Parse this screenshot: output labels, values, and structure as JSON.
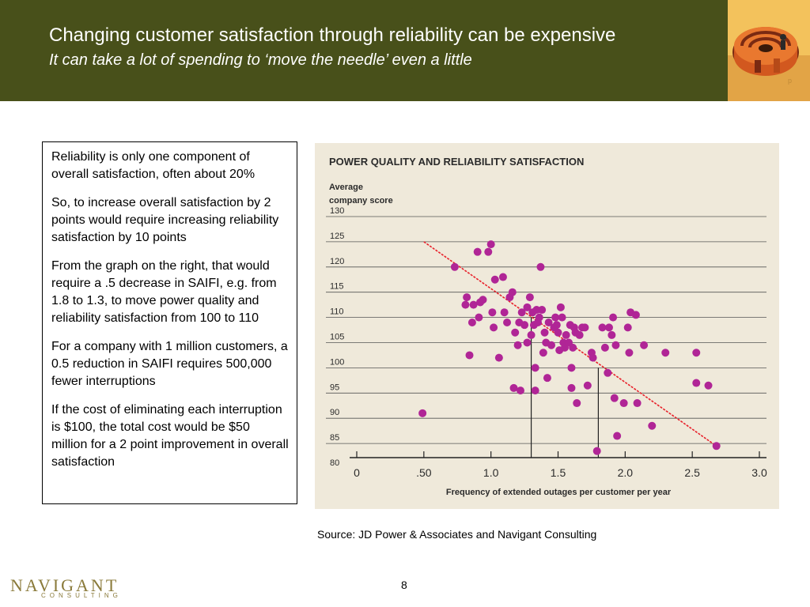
{
  "slide": {
    "title": "Changing customer satisfaction through reliability can be expensive",
    "subtitle": "It can take a lot of spending to ‘move the needle’ even a little",
    "paragraphs": [
      "Reliability is only one component of overall satisfaction, often about 20%",
      "So, to increase overall satisfaction by 2 points would require increasing reliability satisfaction by 10 points",
      "From the graph on the right, that would require a .5 decrease in SAIFI, e.g.  from 1.8 to 1.3, to move power quality and reliability satisfaction from 100 to 110",
      "For a company with 1 million customers, a 0.5 reduction in SAIFI requires 500,000 fewer interruptions",
      "If the cost of eliminating each interruption is $100, the total cost would be $50 million for a 2 point improvement in overall satisfaction"
    ],
    "source": "Source: JD Power & Associates and Navigant Consulting",
    "page_number": "8",
    "brand_name": "NAVIGANT",
    "brand_sub": "CONSULTING",
    "colors": {
      "header": "#48501a",
      "logo_bg": "#f3c25c",
      "chart_bg": "#efe9da",
      "point": "#b02596",
      "trend": "#e8202a"
    },
    "logo_icon": "maze-icon"
  },
  "chart_data": {
    "type": "scatter",
    "title": "POWER QUALITY AND RELIABILITY SATISFACTION",
    "ylabel_line1": "Average",
    "ylabel_line2": "company score",
    "xlabel": "Frequency of extended outages per customer per year",
    "xlim": [
      0,
      3.0
    ],
    "ylim": [
      80,
      130
    ],
    "xticks": [
      "0",
      ".50",
      "1.0",
      "1.5",
      "2.0",
      "2.5",
      "3.0"
    ],
    "xtick_values": [
      0,
      0.5,
      1.0,
      1.5,
      2.0,
      2.5,
      3.0
    ],
    "yticks": [
      "80",
      "85",
      "90",
      "95",
      "100",
      "105",
      "110",
      "115",
      "120",
      "125",
      "130"
    ],
    "ytick_values": [
      80,
      85,
      90,
      95,
      100,
      105,
      110,
      115,
      120,
      125,
      130
    ],
    "grid": "horizontal",
    "trend_line": [
      [
        0.5,
        125
      ],
      [
        2.68,
        84.5
      ]
    ],
    "reference_lines": [
      {
        "x": 1.3,
        "y": 110
      },
      {
        "x": 1.8,
        "y": 100
      }
    ],
    "points": [
      [
        0.49,
        91
      ],
      [
        0.73,
        120
      ],
      [
        0.81,
        112.5
      ],
      [
        0.82,
        114
      ],
      [
        0.84,
        102.5
      ],
      [
        0.86,
        109
      ],
      [
        0.87,
        112.5
      ],
      [
        0.9,
        123
      ],
      [
        0.91,
        110
      ],
      [
        0.92,
        113
      ],
      [
        0.94,
        113.5
      ],
      [
        0.98,
        123
      ],
      [
        1.0,
        124.5
      ],
      [
        1.01,
        111
      ],
      [
        1.02,
        108
      ],
      [
        1.03,
        117.5
      ],
      [
        1.06,
        102
      ],
      [
        1.09,
        118
      ],
      [
        1.1,
        111
      ],
      [
        1.12,
        109
      ],
      [
        1.14,
        114
      ],
      [
        1.16,
        115
      ],
      [
        1.17,
        96
      ],
      [
        1.18,
        107
      ],
      [
        1.2,
        104.5
      ],
      [
        1.21,
        109
      ],
      [
        1.22,
        95.5
      ],
      [
        1.23,
        111
      ],
      [
        1.25,
        108.5
      ],
      [
        1.27,
        112
      ],
      [
        1.27,
        105
      ],
      [
        1.29,
        114
      ],
      [
        1.3,
        106.5
      ],
      [
        1.31,
        111
      ],
      [
        1.32,
        108.5
      ],
      [
        1.33,
        100
      ],
      [
        1.33,
        95.5
      ],
      [
        1.34,
        111.5
      ],
      [
        1.35,
        109
      ],
      [
        1.36,
        110
      ],
      [
        1.37,
        120
      ],
      [
        1.38,
        111.5
      ],
      [
        1.39,
        103
      ],
      [
        1.4,
        107
      ],
      [
        1.41,
        105
      ],
      [
        1.42,
        98
      ],
      [
        1.43,
        109
      ],
      [
        1.45,
        104.5
      ],
      [
        1.47,
        108
      ],
      [
        1.48,
        110
      ],
      [
        1.49,
        108.5
      ],
      [
        1.5,
        107
      ],
      [
        1.51,
        103.5
      ],
      [
        1.52,
        112
      ],
      [
        1.53,
        110
      ],
      [
        1.54,
        105
      ],
      [
        1.55,
        104
      ],
      [
        1.56,
        106.5
      ],
      [
        1.58,
        105
      ],
      [
        1.59,
        108.5
      ],
      [
        1.6,
        100
      ],
      [
        1.6,
        96
      ],
      [
        1.61,
        104
      ],
      [
        1.62,
        108
      ],
      [
        1.63,
        107
      ],
      [
        1.64,
        93
      ],
      [
        1.66,
        106.5
      ],
      [
        1.68,
        108
      ],
      [
        1.7,
        108
      ],
      [
        1.72,
        96.5
      ],
      [
        1.75,
        103
      ],
      [
        1.76,
        102
      ],
      [
        1.79,
        83.5
      ],
      [
        1.83,
        108
      ],
      [
        1.85,
        104
      ],
      [
        1.87,
        99
      ],
      [
        1.88,
        108
      ],
      [
        1.9,
        106.5
      ],
      [
        1.91,
        110
      ],
      [
        1.92,
        94
      ],
      [
        1.93,
        104.5
      ],
      [
        1.94,
        86.5
      ],
      [
        1.99,
        93
      ],
      [
        2.02,
        108
      ],
      [
        2.03,
        103
      ],
      [
        2.04,
        111
      ],
      [
        2.08,
        110.5
      ],
      [
        2.09,
        93
      ],
      [
        2.14,
        104.5
      ],
      [
        2.2,
        88.5
      ],
      [
        2.3,
        103
      ],
      [
        2.53,
        103
      ],
      [
        2.53,
        97
      ],
      [
        2.62,
        96.5
      ],
      [
        2.68,
        84.5
      ]
    ]
  }
}
